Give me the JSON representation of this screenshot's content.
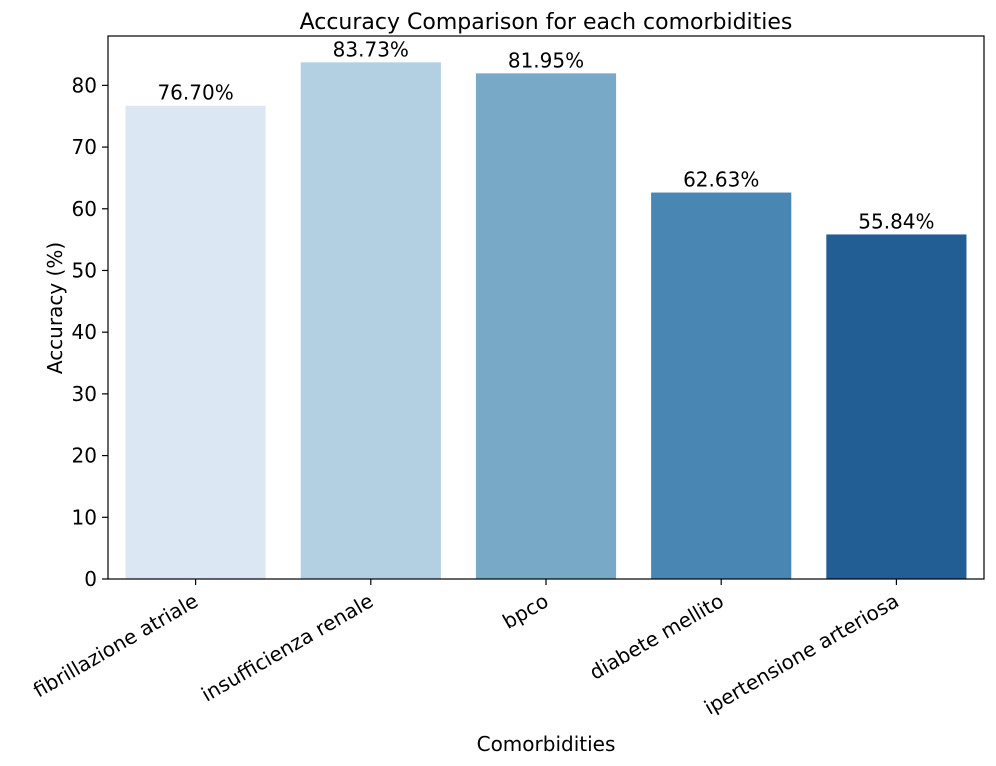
{
  "chart_data": {
    "type": "bar",
    "title": "Accuracy Comparison for each comorbidities",
    "xlabel": "Comorbidities",
    "ylabel": "Accuracy (%)",
    "ylim": [
      0,
      88
    ],
    "yticks": [
      0,
      10,
      20,
      30,
      40,
      50,
      60,
      70,
      80
    ],
    "grid": false,
    "categories": [
      "fibrillazione atriale",
      "insufficienza renale",
      "bpco",
      "diabete mellito",
      "ipertensione arteriosa"
    ],
    "values": [
      76.7,
      83.73,
      81.95,
      62.63,
      55.84
    ],
    "data_labels": [
      "76.70%",
      "83.73%",
      "81.95%",
      "62.63%",
      "55.84%"
    ],
    "colors": [
      "#dbe8f4",
      "#b3cfe2",
      "#78aac8",
      "#4986b4",
      "#225d94"
    ]
  }
}
